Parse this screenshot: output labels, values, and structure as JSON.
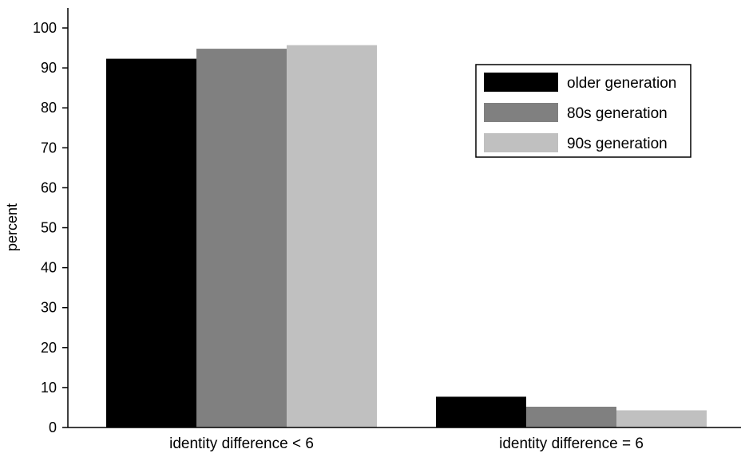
{
  "chart_data": {
    "type": "bar",
    "title": "",
    "xlabel": "",
    "ylabel": "percent",
    "ylim": [
      0,
      105
    ],
    "yticks": [
      0,
      10,
      20,
      30,
      40,
      50,
      60,
      70,
      80,
      90,
      100
    ],
    "categories": [
      "identity difference < 6",
      "identity difference = 6"
    ],
    "series": [
      {
        "name": "older generation",
        "color": "#000000",
        "values": [
          92.3,
          7.7
        ]
      },
      {
        "name": "80s generation",
        "color": "#808080",
        "values": [
          94.8,
          5.2
        ]
      },
      {
        "name": "90s generation",
        "color": "#c0c0c0",
        "values": [
          95.7,
          4.3
        ]
      }
    ],
    "grid": false,
    "legend_position": "top-right"
  }
}
